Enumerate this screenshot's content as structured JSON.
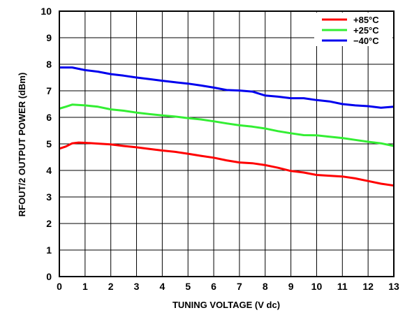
{
  "chart_data": {
    "type": "line",
    "xlabel": "TUNING VOLTAGE (V dc)",
    "ylabel": "RFOUT/2 OUTPUT POWER (dBm)",
    "xlim": [
      0,
      13
    ],
    "ylim": [
      0,
      10
    ],
    "x_ticks": [
      "0",
      "1",
      "2",
      "3",
      "4",
      "5",
      "6",
      "7",
      "8",
      "9",
      "10",
      "11",
      "12",
      "13"
    ],
    "y_ticks": [
      "0",
      "1",
      "2",
      "3",
      "4",
      "5",
      "6",
      "7",
      "8",
      "9",
      "10"
    ],
    "grid": true,
    "legend_position": "top-right",
    "series": [
      {
        "name": "+85°C",
        "color": "#ff0000",
        "points": [
          [
            0,
            4.82
          ],
          [
            0.25,
            4.9
          ],
          [
            0.5,
            5.02
          ],
          [
            0.75,
            5.05
          ],
          [
            1,
            5.04
          ],
          [
            1.5,
            5.01
          ],
          [
            2,
            4.98
          ],
          [
            2.5,
            4.92
          ],
          [
            3,
            4.87
          ],
          [
            3.5,
            4.81
          ],
          [
            4,
            4.75
          ],
          [
            4.5,
            4.7
          ],
          [
            5,
            4.63
          ],
          [
            5.5,
            4.55
          ],
          [
            6,
            4.48
          ],
          [
            6.5,
            4.38
          ],
          [
            7,
            4.3
          ],
          [
            7.5,
            4.27
          ],
          [
            8,
            4.2
          ],
          [
            8.5,
            4.1
          ],
          [
            9,
            3.98
          ],
          [
            9.5,
            3.92
          ],
          [
            10,
            3.83
          ],
          [
            10.5,
            3.8
          ],
          [
            11,
            3.77
          ],
          [
            11.5,
            3.7
          ],
          [
            12,
            3.6
          ],
          [
            12.5,
            3.5
          ],
          [
            13,
            3.43
          ]
        ]
      },
      {
        "name": "+25°C",
        "color": "#33ee33",
        "points": [
          [
            0,
            6.33
          ],
          [
            0.25,
            6.4
          ],
          [
            0.5,
            6.48
          ],
          [
            1,
            6.45
          ],
          [
            1.5,
            6.4
          ],
          [
            2,
            6.3
          ],
          [
            2.5,
            6.25
          ],
          [
            3,
            6.18
          ],
          [
            3.5,
            6.12
          ],
          [
            4,
            6.07
          ],
          [
            4.5,
            6.03
          ],
          [
            5,
            5.97
          ],
          [
            5.5,
            5.92
          ],
          [
            6,
            5.85
          ],
          [
            6.5,
            5.77
          ],
          [
            7,
            5.7
          ],
          [
            7.5,
            5.65
          ],
          [
            8,
            5.58
          ],
          [
            8.5,
            5.48
          ],
          [
            9,
            5.4
          ],
          [
            9.5,
            5.33
          ],
          [
            10,
            5.32
          ],
          [
            10.5,
            5.27
          ],
          [
            11,
            5.22
          ],
          [
            11.5,
            5.15
          ],
          [
            12,
            5.08
          ],
          [
            12.5,
            5.02
          ],
          [
            13,
            4.92
          ]
        ]
      },
      {
        "name": "−40°C",
        "color": "#0000ee",
        "points": [
          [
            0,
            7.88
          ],
          [
            0.5,
            7.88
          ],
          [
            1,
            7.78
          ],
          [
            1.5,
            7.72
          ],
          [
            2,
            7.63
          ],
          [
            2.5,
            7.57
          ],
          [
            3,
            7.5
          ],
          [
            3.5,
            7.44
          ],
          [
            4,
            7.38
          ],
          [
            4.5,
            7.32
          ],
          [
            5,
            7.27
          ],
          [
            5.5,
            7.2
          ],
          [
            6,
            7.12
          ],
          [
            6.5,
            7.03
          ],
          [
            7,
            7.01
          ],
          [
            7.5,
            6.97
          ],
          [
            8,
            6.82
          ],
          [
            8.5,
            6.78
          ],
          [
            9,
            6.72
          ],
          [
            9.5,
            6.72
          ],
          [
            10,
            6.65
          ],
          [
            10.5,
            6.6
          ],
          [
            11,
            6.5
          ],
          [
            11.5,
            6.45
          ],
          [
            12,
            6.42
          ],
          [
            12.5,
            6.36
          ],
          [
            13,
            6.4
          ]
        ]
      }
    ]
  }
}
